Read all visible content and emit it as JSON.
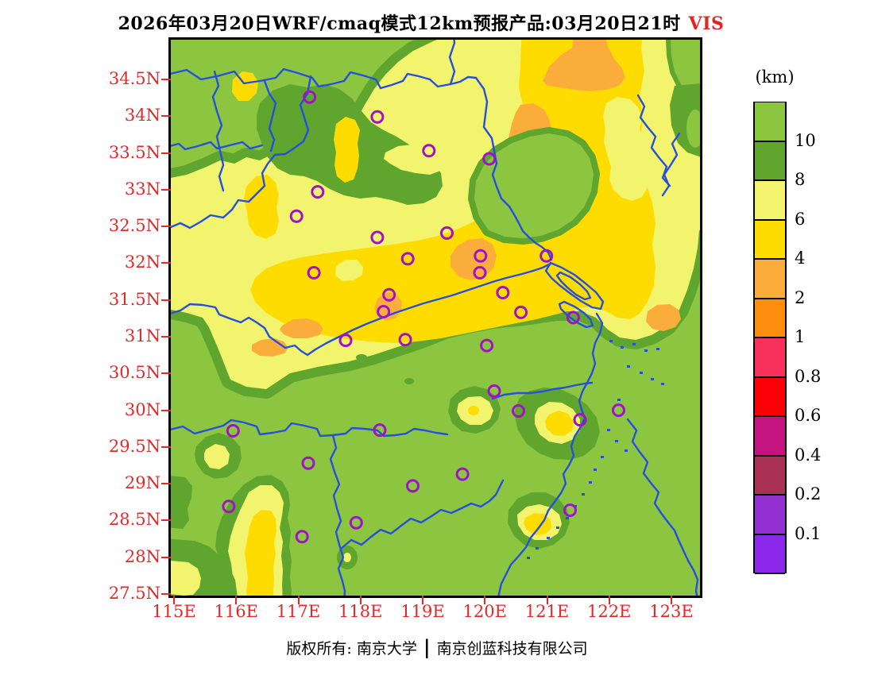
{
  "title": {
    "main": "2026年03月20日WRF/cmaq模式12km预报产品:03月20日21时",
    "highlight": "VIS"
  },
  "footer": {
    "copyright_left": "版权所有: 南京大学",
    "separator": "|",
    "copyright_right": "南京创蓝科技有限公司"
  },
  "axes": {
    "y_labels": [
      "34.5N",
      "34N",
      "33.5N",
      "33N",
      "32.5N",
      "32N",
      "31.5N",
      "31N",
      "30.5N",
      "30N",
      "29.5N",
      "29N",
      "28.5N",
      "28N",
      "27.5N"
    ],
    "y_lats": [
      34.5,
      34,
      33.5,
      33,
      32.5,
      32,
      31.5,
      31,
      30.5,
      30,
      29.5,
      29,
      28.5,
      28,
      27.5
    ],
    "x_labels": [
      "115E",
      "116E",
      "117E",
      "118E",
      "119E",
      "120E",
      "121E",
      "122E",
      "123E"
    ],
    "x_lons": [
      115,
      116,
      117,
      118,
      119,
      120,
      121,
      122,
      123
    ],
    "label_color": "#e02a2a"
  },
  "legend": {
    "unit": "(km)",
    "tick_labels": [
      "10",
      "8",
      "6",
      "4",
      "2",
      "1",
      "0.8",
      "0.6",
      "0.4",
      "0.2",
      "0.1"
    ],
    "cell_colors_top_to_bottom": [
      "#8cc640",
      "#60a62e",
      "#f2f46e",
      "#ffdc00",
      "#fbad3c",
      "#fc8d0d",
      "#f8305c",
      "#fb0007",
      "#c4147f",
      "#aa3156",
      "#9230d2",
      "#8c28ea"
    ]
  },
  "map": {
    "boundary_color": "#2650dc",
    "marker_color": "#a012c8",
    "frame_color": "#000000"
  },
  "chart_data": {
    "type": "heatmap",
    "title": "2026年03月20日WRF/cmaq模式12km预报产品:03月20日21时 VIS",
    "variable": "visibility",
    "unit": "km",
    "lon_range": [
      114.95,
      123.46
    ],
    "lat_range": [
      27.54,
      35.04
    ],
    "grid": false,
    "legend_position": "right",
    "levels": [
      0.1,
      0.2,
      0.4,
      0.6,
      0.8,
      1,
      2,
      4,
      6,
      8,
      10
    ],
    "palette_low_to_high": [
      "#8c28ea",
      "#9230d2",
      "#aa3156",
      "#c4147f",
      "#fb0007",
      "#f8305c",
      "#fc8d0d",
      "#fbad3c",
      "#ffdc00",
      "#f2f46e",
      "#60a62e",
      "#8cc640"
    ],
    "station_markers_lonlat": [
      [
        117.18,
        34.26
      ],
      [
        118.27,
        33.99
      ],
      [
        119.1,
        33.53
      ],
      [
        120.07,
        33.42
      ],
      [
        117.31,
        32.97
      ],
      [
        116.97,
        32.64
      ],
      [
        118.27,
        32.35
      ],
      [
        119.39,
        32.41
      ],
      [
        118.76,
        32.06
      ],
      [
        119.93,
        32.1
      ],
      [
        120.99,
        32.1
      ],
      [
        117.25,
        31.87
      ],
      [
        119.92,
        31.87
      ],
      [
        120.29,
        31.6
      ],
      [
        118.46,
        31.57
      ],
      [
        118.37,
        31.34
      ],
      [
        120.58,
        31.33
      ],
      [
        121.42,
        31.26
      ],
      [
        117.76,
        30.95
      ],
      [
        118.72,
        30.96
      ],
      [
        120.03,
        30.88
      ],
      [
        120.15,
        30.26
      ],
      [
        120.54,
        29.99
      ],
      [
        121.53,
        29.87
      ],
      [
        122.15,
        30.0
      ],
      [
        115.95,
        29.72
      ],
      [
        118.31,
        29.73
      ],
      [
        117.16,
        29.28
      ],
      [
        118.84,
        28.97
      ],
      [
        119.64,
        29.13
      ],
      [
        115.88,
        28.69
      ],
      [
        117.93,
        28.47
      ],
      [
        117.06,
        28.28
      ],
      [
        121.37,
        28.64
      ]
    ],
    "regions_summary": [
      {
        "visibility_km": ">10",
        "color": "#8cc640",
        "where": "background: southern half (Zhejiang/Jiangxi), coastal sea, northwest corner"
      },
      {
        "visibility_km": "8-10",
        "color": "#60a62e",
        "where": "transition fringes around reduced-visibility zones; central Jiangsu high patch rim; coastal Zhejiang hills"
      },
      {
        "visibility_km": "6-8",
        "color": "#f2f46e",
        "where": "broad band over northern Anhui and Jiangsu, small pockets in southern Anhui/Zhejiang coast"
      },
      {
        "visibility_km": "4-6",
        "color": "#ffdc00",
        "where": "core band northeast Jiangsu and along the Yangtze valley (31-32.5N), plume near 116.3E south"
      },
      {
        "visibility_km": "2-4",
        "color": "#fbad3c",
        "where": "patches near 120.5E 34.3N, 120E 33-33.8N, 119.5E 31.9N, 118.4E 31.4N, 117-117.5E 30.9-31.1N, 122.7E 31.2N"
      }
    ]
  }
}
